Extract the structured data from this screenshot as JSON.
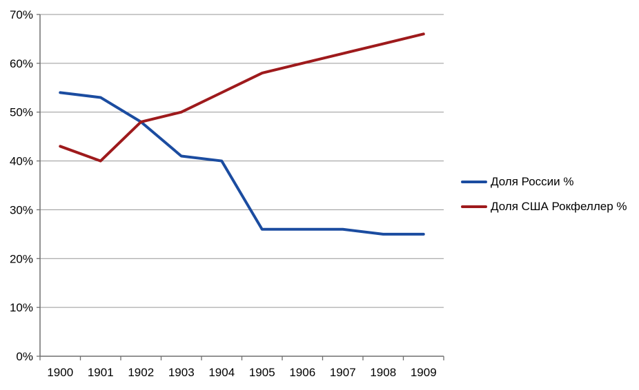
{
  "chart_data": {
    "type": "line",
    "categories": [
      "1900",
      "1901",
      "1902",
      "1903",
      "1904",
      "1905",
      "1906",
      "1907",
      "1908",
      "1909"
    ],
    "series": [
      {
        "name": "Доля России %",
        "values": [
          54,
          53,
          48,
          41,
          40,
          26,
          26,
          26,
          25,
          25
        ],
        "color": "#1B4CA0"
      },
      {
        "name": "Доля США Рокфеллер %",
        "values": [
          43,
          40,
          48,
          50,
          54,
          58,
          60,
          62,
          64,
          66
        ],
        "color": "#9E1A1C"
      }
    ],
    "title": "",
    "xlabel": "",
    "ylabel": "",
    "ylim": [
      0,
      70
    ],
    "ytick_step": 10,
    "ytick_labels": [
      "0%",
      "10%",
      "20%",
      "30%",
      "40%",
      "50%",
      "60%",
      "70%"
    ],
    "grid": true,
    "legend_position": "right"
  },
  "colors": {
    "background": "#FFFFFF",
    "gridline": "#969696",
    "axis": "#6E6E6E",
    "tick": "#6E6E6E",
    "label_text": "#000000"
  }
}
